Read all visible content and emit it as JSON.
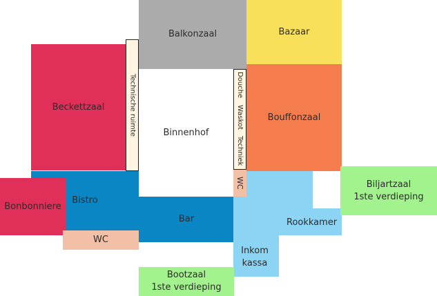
{
  "rooms": {
    "balkonzaal": "Balkonzaal",
    "bazaar": "Bazaar",
    "beckettzaal": "Beckettzaal",
    "technische_ruimte": "Technische ruimte",
    "binnenhof": "Binnenhof",
    "douche": "Douche",
    "waskot": "Waskot",
    "techniek": "Techniek",
    "bouffonzaal": "Bouffonzaal",
    "wc_right": "WC",
    "bistro": "Bistro",
    "bonbonniere": "Bonbonniere",
    "wc_left": "WC",
    "bar": "Bar",
    "biljartzaal": "Biljartzaal\n1ste verdieping",
    "rookkamer": "Rookkamer",
    "inkom_kassa": "Inkom\nkassa",
    "bootzaal": "Bootzaal\n1ste verdieping"
  },
  "colors": {
    "gray": "#ababab",
    "yellow": "#f9e05a",
    "crimson": "#e0305a",
    "orange": "#f57d4d",
    "cream": "#fff5e0",
    "salmon": "#f2bfa7",
    "blue": "#0a86c5",
    "light_blue": "#8cd4f4",
    "green": "#a2f38d"
  }
}
